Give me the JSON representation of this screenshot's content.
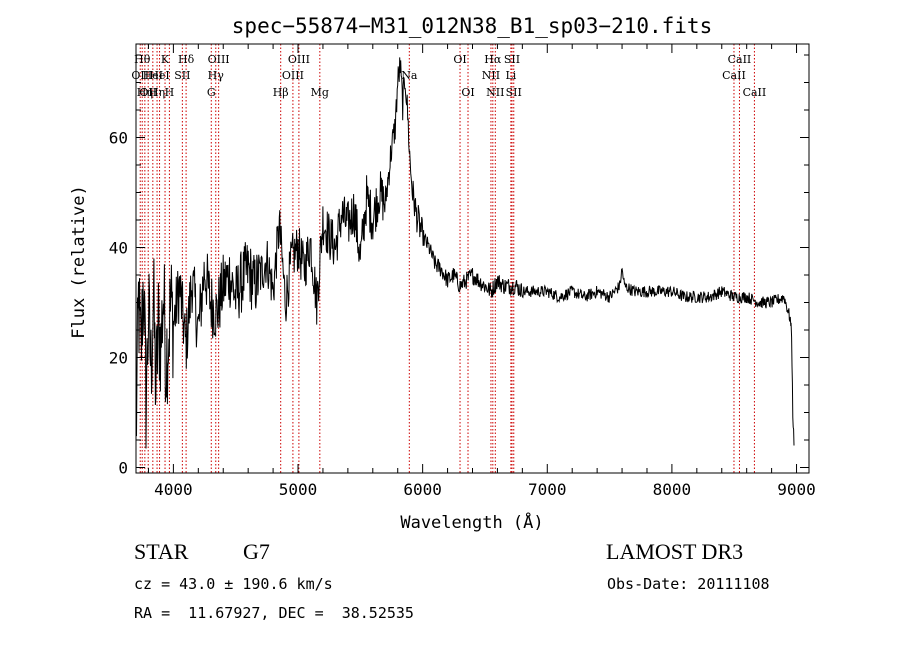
{
  "chart_data": {
    "type": "line",
    "title": "spec−55874−M31_012N38_B1_sp03−210.fits",
    "xlabel": "Wavelength (Å)",
    "ylabel": "Flux (relative)",
    "xlim": [
      3700,
      9100
    ],
    "ylim": [
      -1,
      77
    ],
    "x_ticks": [
      4000,
      5000,
      6000,
      7000,
      8000,
      9000
    ],
    "x_tick_labels": [
      "4000",
      "5000",
      "6000",
      "7000",
      "8000",
      "9000"
    ],
    "y_ticks": [
      0,
      20,
      40,
      60
    ],
    "y_tick_labels": [
      "0",
      "20",
      "40",
      "60"
    ],
    "line_color": "#000000",
    "marker_color": "#cc0000",
    "series": [
      {
        "name": "flux",
        "x": [
          3700,
          3720,
          3740,
          3760,
          3780,
          3800,
          3820,
          3840,
          3860,
          3880,
          3900,
          3920,
          3940,
          3960,
          3980,
          4000,
          4050,
          4100,
          4150,
          4200,
          4250,
          4300,
          4350,
          4400,
          4450,
          4500,
          4550,
          4600,
          4650,
          4700,
          4750,
          4800,
          4850,
          4900,
          4950,
          5000,
          5050,
          5100,
          5150,
          5200,
          5250,
          5300,
          5350,
          5400,
          5450,
          5500,
          5550,
          5600,
          5650,
          5700,
          5750,
          5780,
          5800,
          5820,
          5840,
          5860,
          5880,
          5900,
          5920,
          5950,
          6000,
          6050,
          6100,
          6150,
          6200,
          6250,
          6300,
          6350,
          6400,
          6450,
          6500,
          6550,
          6600,
          6650,
          6700,
          6750,
          6800,
          6900,
          7000,
          7100,
          7200,
          7300,
          7400,
          7500,
          7580,
          7600,
          7620,
          7700,
          7800,
          7900,
          8000,
          8100,
          8200,
          8300,
          8400,
          8500,
          8600,
          8700,
          8800,
          8900,
          8950,
          8960,
          8970,
          8980
        ],
        "y": [
          5,
          30,
          20,
          35,
          12,
          28,
          18,
          31,
          14,
          26,
          22,
          32,
          20,
          24,
          30,
          26,
          33,
          22,
          34,
          25,
          36,
          30,
          28,
          33,
          35,
          31,
          34,
          36,
          33,
          35,
          38,
          32,
          44,
          30,
          38,
          40,
          36,
          41,
          30,
          45,
          42,
          40,
          46,
          44,
          47,
          38,
          49,
          45,
          50,
          48,
          58,
          62,
          70,
          73,
          66,
          71,
          64,
          55,
          50,
          46,
          42,
          40,
          37,
          36,
          34,
          35,
          33,
          34,
          35,
          34,
          33,
          32,
          34,
          33,
          33,
          33,
          32,
          32,
          32,
          31,
          32,
          31,
          32,
          31,
          33,
          36,
          33,
          32,
          32,
          32,
          32,
          31,
          31,
          31,
          32,
          31,
          31,
          30,
          30,
          31,
          27,
          24,
          10,
          4
        ]
      }
    ],
    "line_markers": [
      {
        "x": 3734,
        "label": "OII",
        "row": 2
      },
      {
        "x": 3750,
        "label": "Hθ",
        "row": 1
      },
      {
        "x": 3771,
        "label": "Hη",
        "row": 3
      },
      {
        "x": 3798,
        "label": "OII",
        "row": 3
      },
      {
        "x": 3835,
        "label": "HeI",
        "row": 2
      },
      {
        "x": 3869,
        "label": "Hη",
        "row": 3
      },
      {
        "x": 3889,
        "label": "HeI",
        "row": 2
      },
      {
        "x": 3933,
        "label": "K",
        "row": 1
      },
      {
        "x": 3968,
        "label": "H",
        "row": 3
      },
      {
        "x": 4072,
        "label": "SII",
        "row": 2
      },
      {
        "x": 4102,
        "label": "Hδ",
        "row": 1
      },
      {
        "x": 4304,
        "label": "G",
        "row": 3
      },
      {
        "x": 4340,
        "label": "Hγ",
        "row": 2
      },
      {
        "x": 4363,
        "label": "OIII",
        "row": 1
      },
      {
        "x": 4861,
        "label": "Hβ",
        "row": 3
      },
      {
        "x": 4959,
        "label": "OIII",
        "row": 2
      },
      {
        "x": 5007,
        "label": "OIII",
        "row": 1
      },
      {
        "x": 5175,
        "label": "Mg",
        "row": 3
      },
      {
        "x": 5893,
        "label": "Na",
        "row": 2
      },
      {
        "x": 6300,
        "label": "OI",
        "row": 1
      },
      {
        "x": 6364,
        "label": "OI",
        "row": 3
      },
      {
        "x": 6548,
        "label": "NII",
        "row": 2
      },
      {
        "x": 6563,
        "label": "Hα",
        "row": 1
      },
      {
        "x": 6583,
        "label": "NII",
        "row": 3
      },
      {
        "x": 6708,
        "label": "Li",
        "row": 2
      },
      {
        "x": 6717,
        "label": "SII",
        "row": 1
      },
      {
        "x": 6731,
        "label": "SII",
        "row": 3
      },
      {
        "x": 8498,
        "label": "CaII",
        "row": 2
      },
      {
        "x": 8542,
        "label": "CaII",
        "row": 1
      },
      {
        "x": 8662,
        "label": "CaII",
        "row": 3
      }
    ]
  },
  "info": {
    "class": "STAR",
    "subclass": "G7",
    "survey": "LAMOST DR3",
    "cz": "cz = 43.0 ± 190.6 km/s",
    "obs_date": "Obs-Date: 20111108",
    "radec": "RA =  11.67927, DEC =  38.52535"
  }
}
